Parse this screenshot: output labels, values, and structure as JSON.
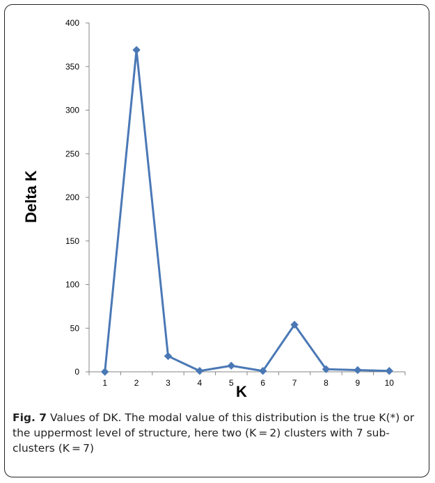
{
  "chart_data": {
    "type": "line",
    "x": [
      1,
      2,
      3,
      4,
      5,
      6,
      7,
      8,
      9,
      10
    ],
    "series": [
      {
        "values": [
          0,
          369,
          18,
          1,
          7,
          1,
          54,
          3,
          2,
          1
        ]
      }
    ],
    "xlabel": "K",
    "ylabel": "Delta K",
    "ylim": [
      0,
      400
    ],
    "yticks": [
      0,
      50,
      100,
      150,
      200,
      250,
      300,
      350,
      400
    ],
    "xticks": [
      "1",
      "2",
      "3",
      "4",
      "5",
      "6",
      "7",
      "8",
      "9",
      "10"
    ],
    "grid": false,
    "legend": "none",
    "color": "#4a78b5"
  },
  "caption": {
    "label": "Fig. 7",
    "text": " Values of DK. The modal value of this distribution is the true K(*) or the uppermost level of structure, here two (K = 2) clusters with 7 sub-clusters (K = 7)"
  }
}
